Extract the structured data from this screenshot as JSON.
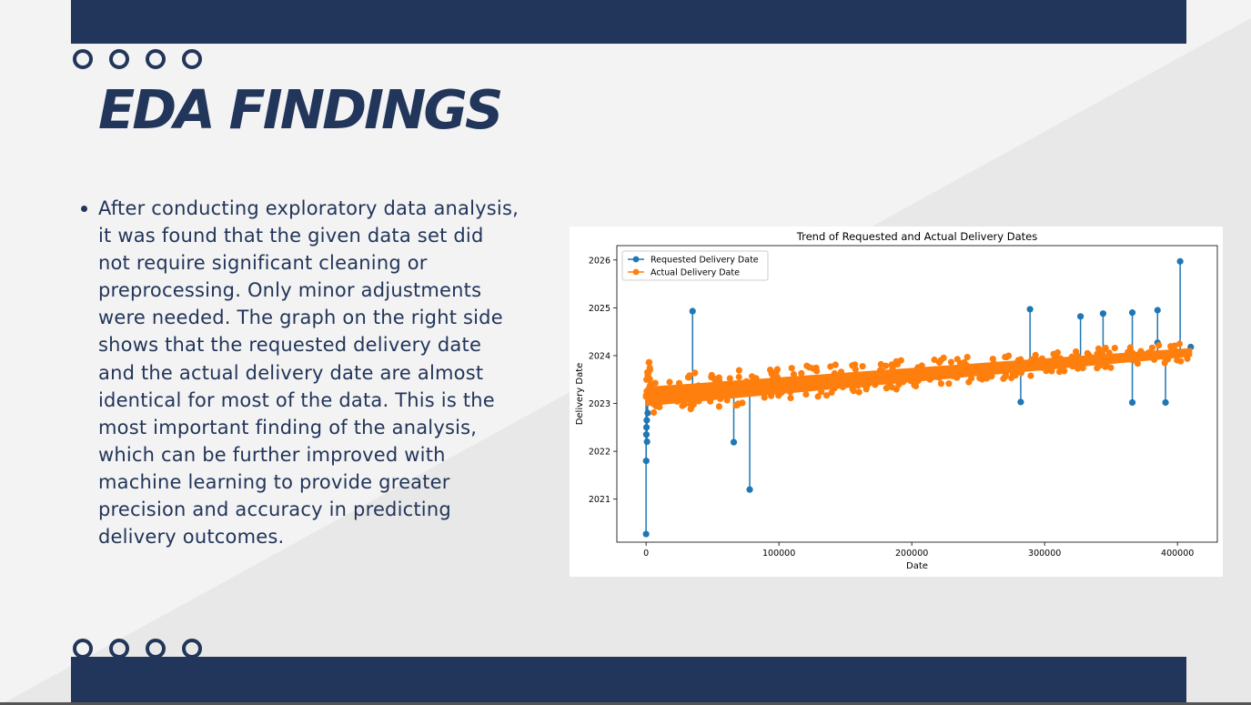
{
  "slide": {
    "title": "EDA FINDINGS",
    "body": "After conducting exploratory data analysis, it was found that the given data set did not require significant cleaning or preprocessing. Only minor adjustments were needed. The graph on the right side shows that the requested delivery date and the actual delivery date are almost identical for most of the data. This is the most important finding of the analysis, which can be further improved with machine learning to provide greater precision and accuracy in predicting delivery outcomes.",
    "colors": {
      "navy": "#22355a",
      "background": "#f3f3f3",
      "diagonal": "#e8e8e8"
    }
  },
  "chart_data": {
    "type": "line",
    "title": "Trend of Requested and Actual Delivery Dates",
    "xlabel": "Date",
    "ylabel": "Delivery Date",
    "xlim": [
      -22000,
      430000
    ],
    "ylim": [
      2020.1,
      2026.3
    ],
    "xticks": [
      0,
      100000,
      200000,
      300000,
      400000
    ],
    "yticks": [
      2021,
      2022,
      2023,
      2024,
      2025,
      2026
    ],
    "grid": false,
    "legend": "top-left",
    "series": [
      {
        "name": "Requested Delivery Date",
        "color": "#1f77b4",
        "trend": {
          "x": [
            0,
            411000
          ],
          "y": [
            2023.1,
            2024.1
          ]
        },
        "outliers": [
          {
            "x": 0,
            "y": 2020.27
          },
          {
            "x": 100,
            "y": 2021.8
          },
          {
            "x": 700,
            "y": 2022.2
          },
          {
            "x": 200,
            "y": 2022.35
          },
          {
            "x": 300,
            "y": 2022.5
          },
          {
            "x": 500,
            "y": 2022.65
          },
          {
            "x": 1200,
            "y": 2022.8
          },
          {
            "x": 35000,
            "y": 2024.93
          },
          {
            "x": 66000,
            "y": 2022.19
          },
          {
            "x": 78000,
            "y": 2021.2
          },
          {
            "x": 282000,
            "y": 2023.03
          },
          {
            "x": 289000,
            "y": 2024.97
          },
          {
            "x": 327000,
            "y": 2024.82
          },
          {
            "x": 344000,
            "y": 2024.88
          },
          {
            "x": 366000,
            "y": 2024.9
          },
          {
            "x": 366000,
            "y": 2023.02
          },
          {
            "x": 385000,
            "y": 2024.95
          },
          {
            "x": 385000,
            "y": 2024.27
          },
          {
            "x": 391000,
            "y": 2023.02
          },
          {
            "x": 402000,
            "y": 2025.97
          },
          {
            "x": 410000,
            "y": 2024.18
          }
        ]
      },
      {
        "name": "Actual Delivery Date",
        "color": "#ff7f0e",
        "trend": {
          "x": [
            0,
            411000
          ],
          "y": [
            2023.1,
            2024.05
          ]
        },
        "spread": 0.45
      }
    ]
  }
}
